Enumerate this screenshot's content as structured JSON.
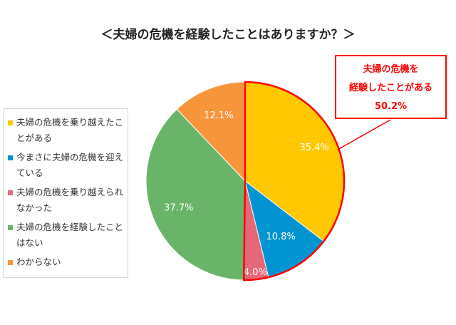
{
  "chart_data": {
    "type": "pie",
    "title": "＜夫婦の危機を経験したことはありますか？＞",
    "categories": [
      "夫婦の危機を乗り越えたことがある",
      "今まさに夫婦の危機を迎えている",
      "夫婦の危機を乗り越えられなかった",
      "夫婦の危機を経験したことはない",
      "わからない"
    ],
    "values": [
      35.4,
      10.8,
      4.0,
      37.7,
      12.1
    ],
    "value_labels": [
      "35.4%",
      "10.8%",
      "4.0%",
      "37.7%",
      "12.1%"
    ],
    "colors": [
      "#ffc800",
      "#0095d0",
      "#e5677a",
      "#6ab46a",
      "#f7953a"
    ],
    "legend_placement": "left",
    "start_angle": "top, clockwise",
    "callout": {
      "lines": [
        "夫婦の危機を",
        "経験したことがある",
        "50.2%"
      ],
      "color": "#ff0000"
    }
  }
}
